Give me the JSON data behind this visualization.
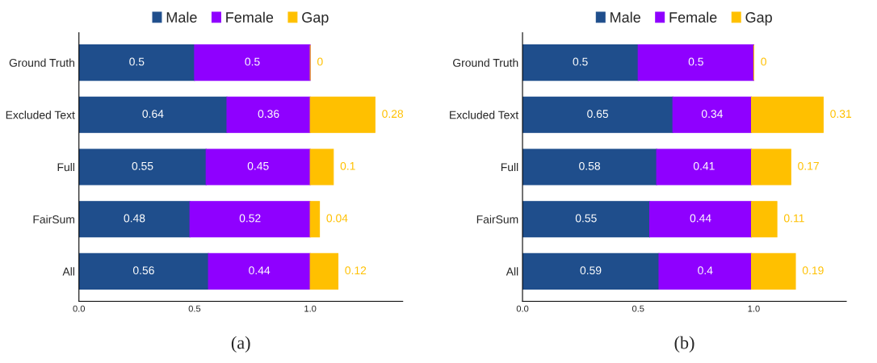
{
  "chart_data": [
    {
      "type": "bar",
      "orientation": "horizontal",
      "stacked": true,
      "categories": [
        "Ground Truth",
        "Excluded Text",
        "Full",
        "FairSum",
        "All"
      ],
      "series": [
        {
          "name": "Male",
          "color": "#1f4e8c",
          "values": [
            0.5,
            0.64,
            0.55,
            0.48,
            0.56
          ]
        },
        {
          "name": "Female",
          "color": "#8f00ff",
          "values": [
            0.5,
            0.36,
            0.45,
            0.52,
            0.44
          ]
        },
        {
          "name": "Gap",
          "color": "#ffc000",
          "values": [
            0,
            0.28,
            0.1,
            0.04,
            0.12
          ]
        }
      ],
      "xlim": [
        0,
        1.4
      ],
      "xticks": [
        {
          "value": 0,
          "label": "0.0"
        },
        {
          "value": 0.5,
          "label": "0.5"
        },
        {
          "value": 1,
          "label": "1.0"
        }
      ],
      "data_labels": true,
      "legend": "top",
      "grid": false,
      "annotations": [
        "(a)"
      ]
    },
    {
      "type": "bar",
      "orientation": "horizontal",
      "stacked": true,
      "categories": [
        "Ground Truth",
        "Excluded Text",
        "Full",
        "FairSum",
        "All"
      ],
      "series": [
        {
          "name": "Male",
          "color": "#1f4e8c",
          "values": [
            0.5,
            0.65,
            0.58,
            0.55,
            0.59
          ]
        },
        {
          "name": "Female",
          "color": "#8f00ff",
          "values": [
            0.5,
            0.34,
            0.41,
            0.44,
            0.4
          ]
        },
        {
          "name": "Gap",
          "color": "#ffc000",
          "values": [
            0,
            0.31,
            0.17,
            0.11,
            0.19
          ]
        }
      ],
      "xlim": [
        0,
        1.4
      ],
      "xticks": [
        {
          "value": 0,
          "label": "0.0"
        },
        {
          "value": 0.5,
          "label": "0.5"
        },
        {
          "value": 1,
          "label": "1.0"
        }
      ],
      "data_labels": true,
      "legend": "top",
      "grid": false,
      "annotations": [
        "(b)"
      ]
    }
  ]
}
